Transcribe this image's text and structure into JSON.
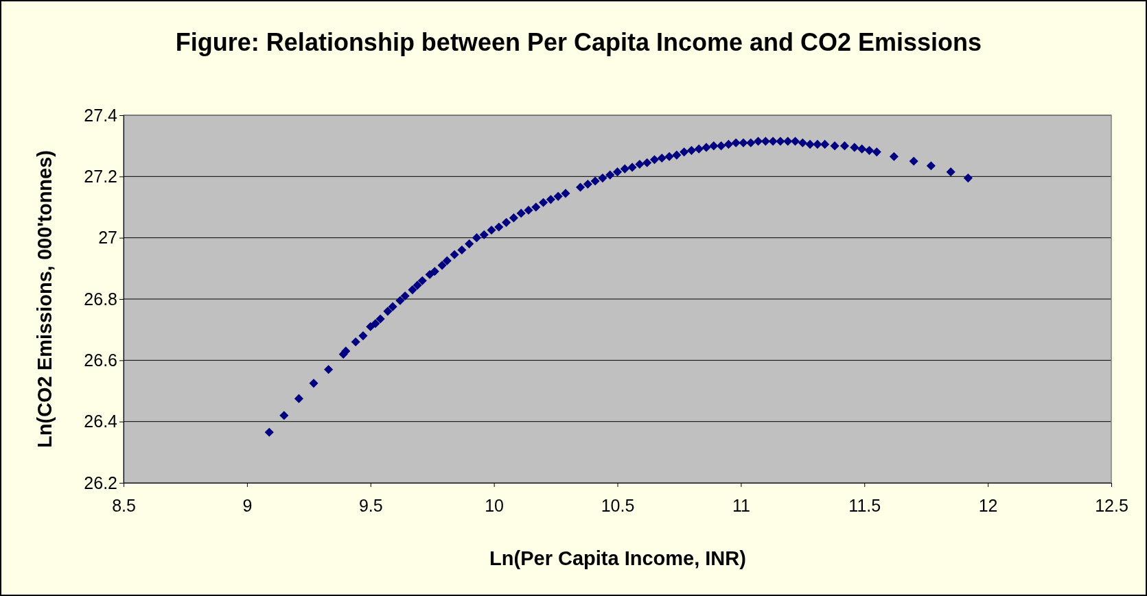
{
  "chart_data": {
    "type": "scatter",
    "title": "Figure: Relationship between Per Capita Income and CO2 Emissions",
    "xlabel": "Ln(Per Capita Income, INR)",
    "ylabel": "Ln(CO2 Emissions, 000'tonnes)",
    "xlim": [
      8.5,
      12.5
    ],
    "xticks": [
      8.5,
      9,
      9.5,
      10,
      10.5,
      11,
      11.5,
      12,
      12.5
    ],
    "ylim": [
      26.2,
      27.4
    ],
    "yticks": [
      26.2,
      26.4,
      26.6,
      26.8,
      27,
      27.2,
      27.4
    ],
    "grid": "y",
    "marker": "diamond",
    "x": [
      9.09,
      9.15,
      9.21,
      9.27,
      9.33,
      9.39,
      9.4,
      9.44,
      9.47,
      9.5,
      9.52,
      9.54,
      9.57,
      9.59,
      9.62,
      9.64,
      9.67,
      9.69,
      9.71,
      9.74,
      9.76,
      9.79,
      9.81,
      9.84,
      9.87,
      9.9,
      9.93,
      9.96,
      9.99,
      10.02,
      10.05,
      10.08,
      10.11,
      10.14,
      10.17,
      10.2,
      10.23,
      10.26,
      10.29,
      10.35,
      10.38,
      10.41,
      10.44,
      10.47,
      10.5,
      10.53,
      10.56,
      10.59,
      10.62,
      10.65,
      10.68,
      10.71,
      10.74,
      10.77,
      10.8,
      10.83,
      10.86,
      10.89,
      10.92,
      10.95,
      10.98,
      11.01,
      11.04,
      11.07,
      11.1,
      11.13,
      11.16,
      11.19,
      11.22,
      11.25,
      11.28,
      11.31,
      11.34,
      11.38,
      11.42,
      11.46,
      11.49,
      11.52,
      11.55,
      11.62,
      11.7,
      11.77,
      11.85,
      11.92
    ],
    "series": [
      {
        "color": "#000080",
        "values": [
          26.365,
          26.42,
          26.475,
          26.525,
          26.57,
          26.62,
          26.63,
          26.66,
          26.68,
          26.71,
          26.72,
          26.735,
          26.76,
          26.775,
          26.795,
          26.81,
          26.83,
          26.845,
          26.86,
          26.88,
          26.89,
          26.91,
          26.925,
          26.945,
          26.96,
          26.98,
          27.0,
          27.01,
          27.025,
          27.035,
          27.05,
          27.065,
          27.08,
          27.09,
          27.1,
          27.115,
          27.125,
          27.135,
          27.145,
          27.165,
          27.175,
          27.185,
          27.195,
          27.205,
          27.215,
          27.225,
          27.23,
          27.24,
          27.245,
          27.255,
          27.26,
          27.265,
          27.27,
          27.28,
          27.285,
          27.29,
          27.295,
          27.3,
          27.3,
          27.305,
          27.31,
          27.31,
          27.31,
          27.315,
          27.315,
          27.315,
          27.315,
          27.315,
          27.315,
          27.31,
          27.305,
          27.305,
          27.305,
          27.3,
          27.3,
          27.295,
          27.29,
          27.285,
          27.28,
          27.265,
          27.25,
          27.235,
          27.215,
          27.195
        ]
      }
    ]
  }
}
